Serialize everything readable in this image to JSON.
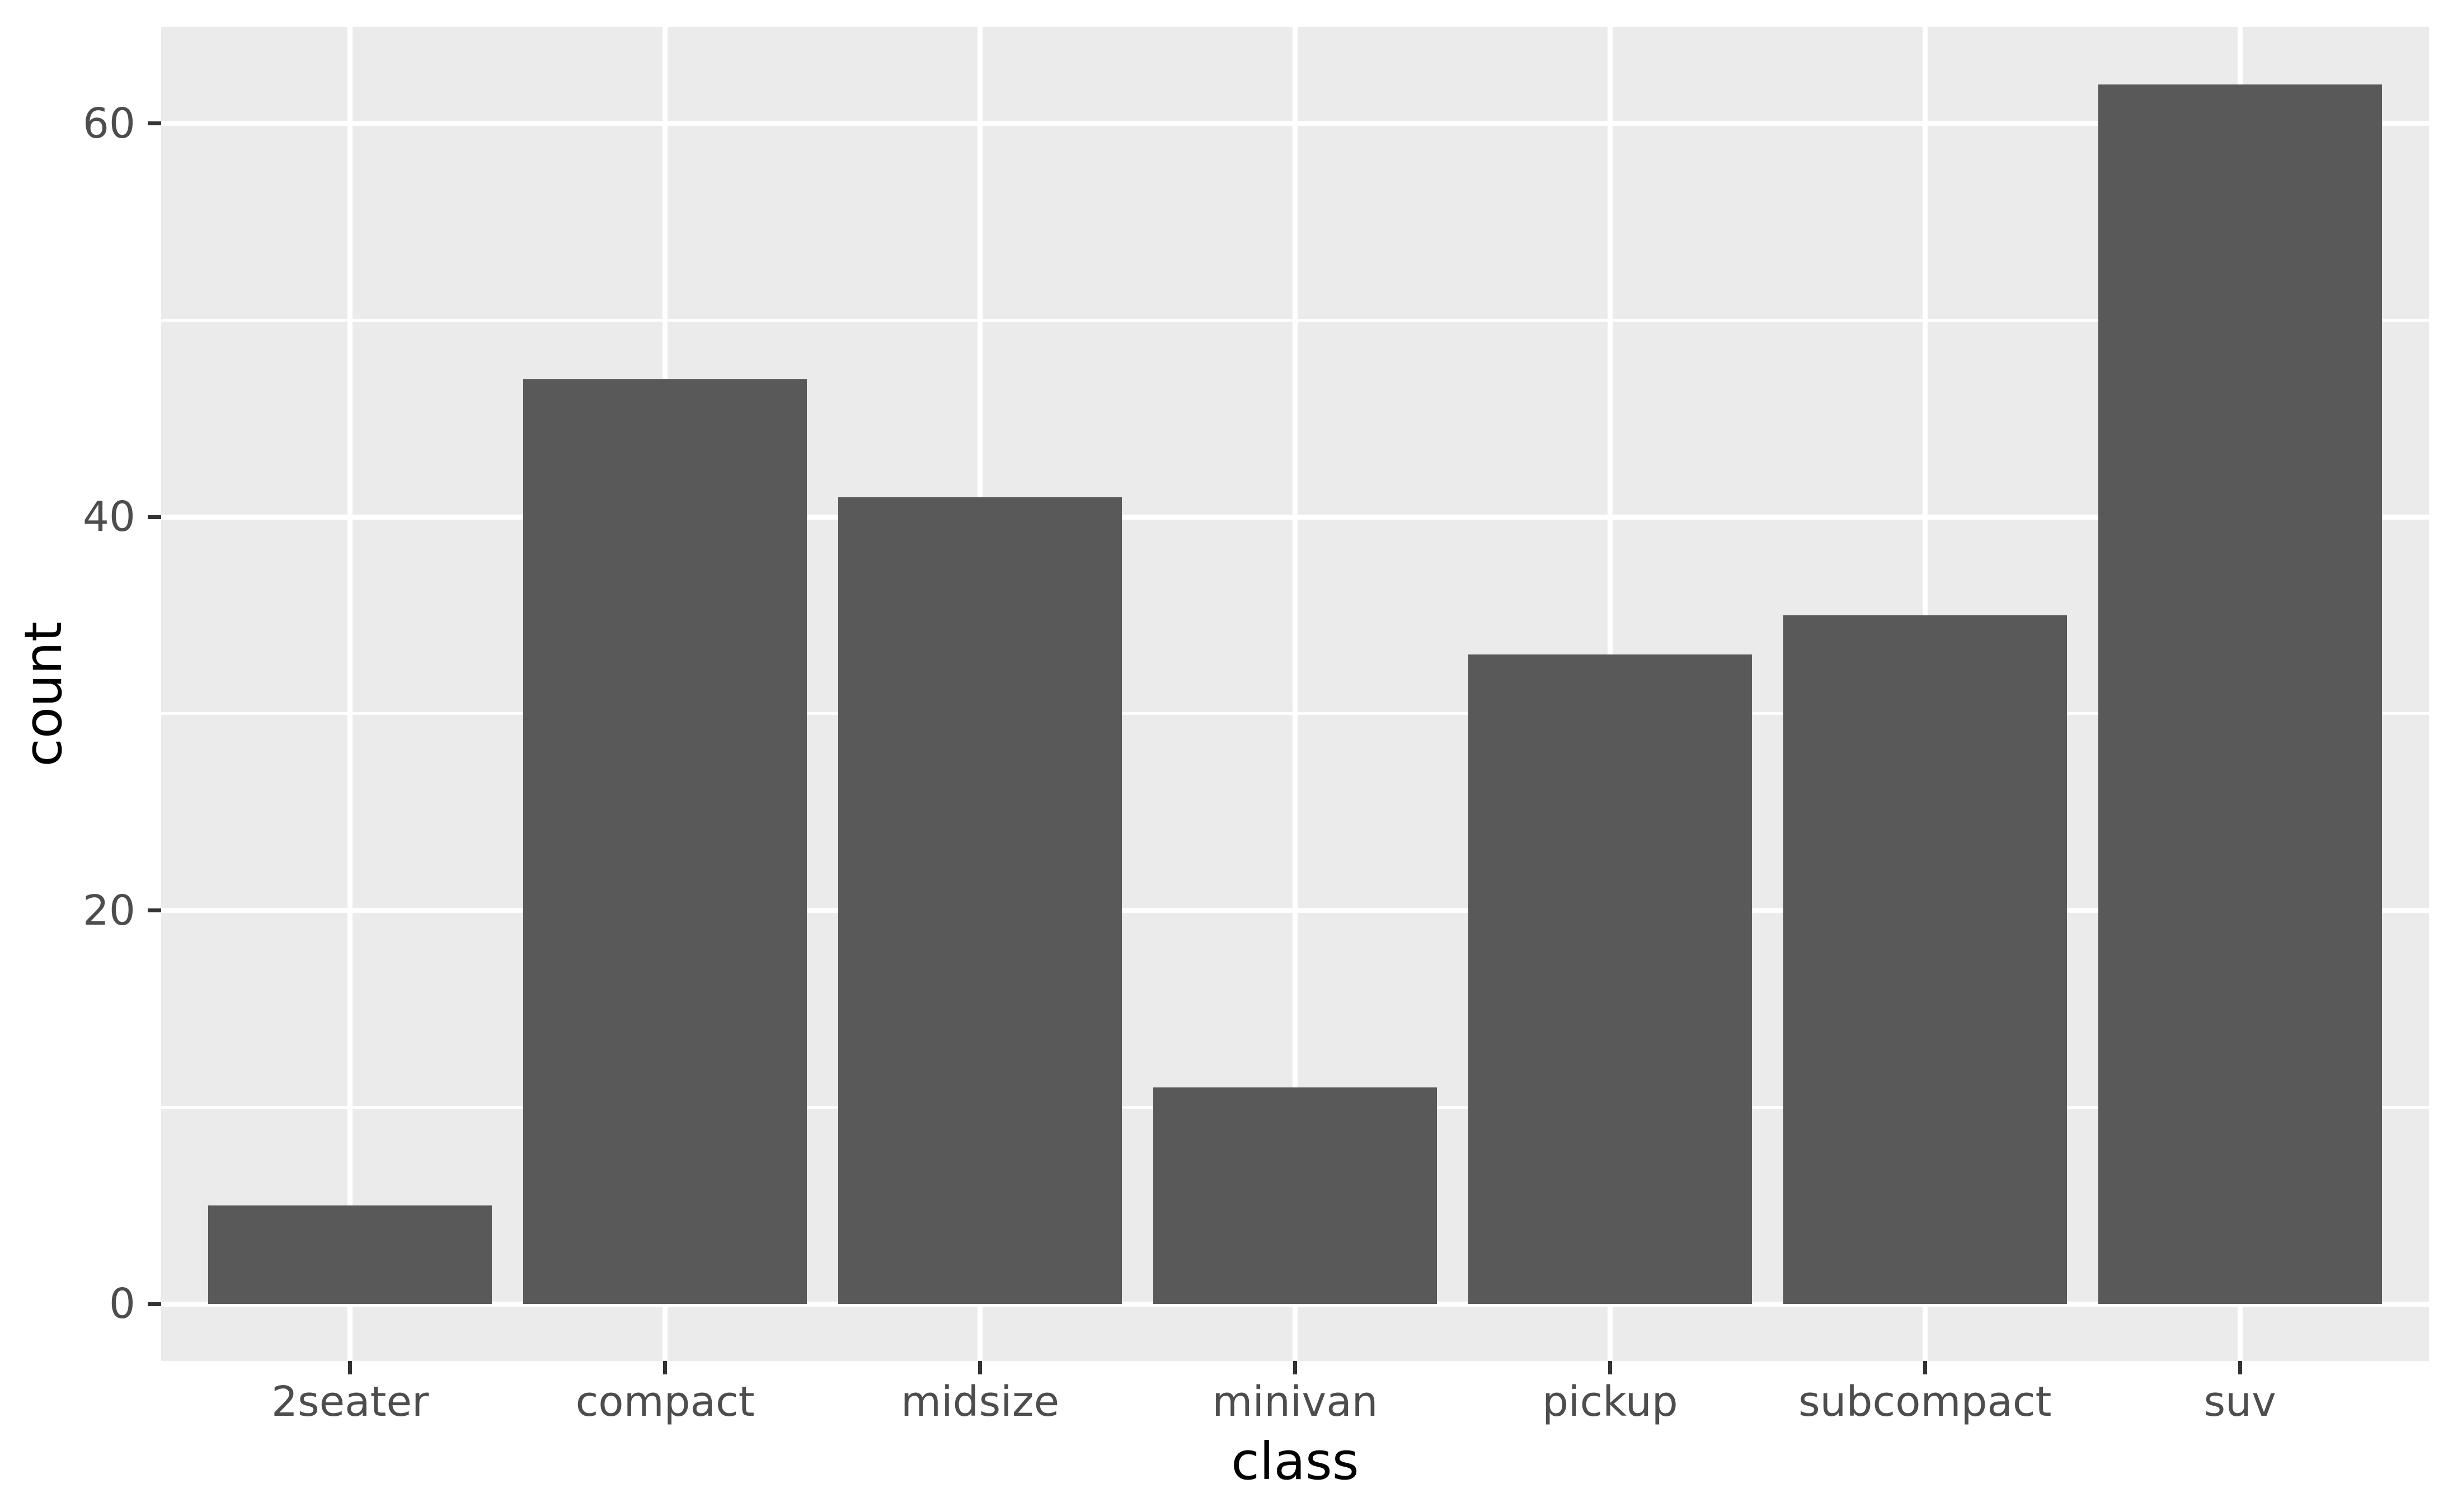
{
  "chart_data": {
    "type": "bar",
    "title": "",
    "categories": [
      "2seater",
      "compact",
      "midsize",
      "minivan",
      "pickup",
      "subcompact",
      "suv"
    ],
    "values": [
      5,
      47,
      41,
      11,
      33,
      35,
      62
    ],
    "xlabel": "class",
    "ylabel": "count",
    "ytick_labels": [
      "0",
      "20",
      "40",
      "60"
    ],
    "yticks": [
      0,
      20,
      40,
      60
    ],
    "yticks_minor": [
      10,
      30,
      50
    ],
    "ylim": [
      -2.9,
      65.1
    ],
    "legend": "none",
    "grid": "white major and minor horizontal lines, white major vertical lines at category centers, on gray panel",
    "colors": {
      "background": "#FFFFFF",
      "panel_bg": "#EBEBEB",
      "gridline": "#FFFFFF",
      "bar_fill": "#595959",
      "tick_mark": "#333333",
      "tick_label": "#4D4D4D",
      "axis_title": "#000000"
    }
  }
}
